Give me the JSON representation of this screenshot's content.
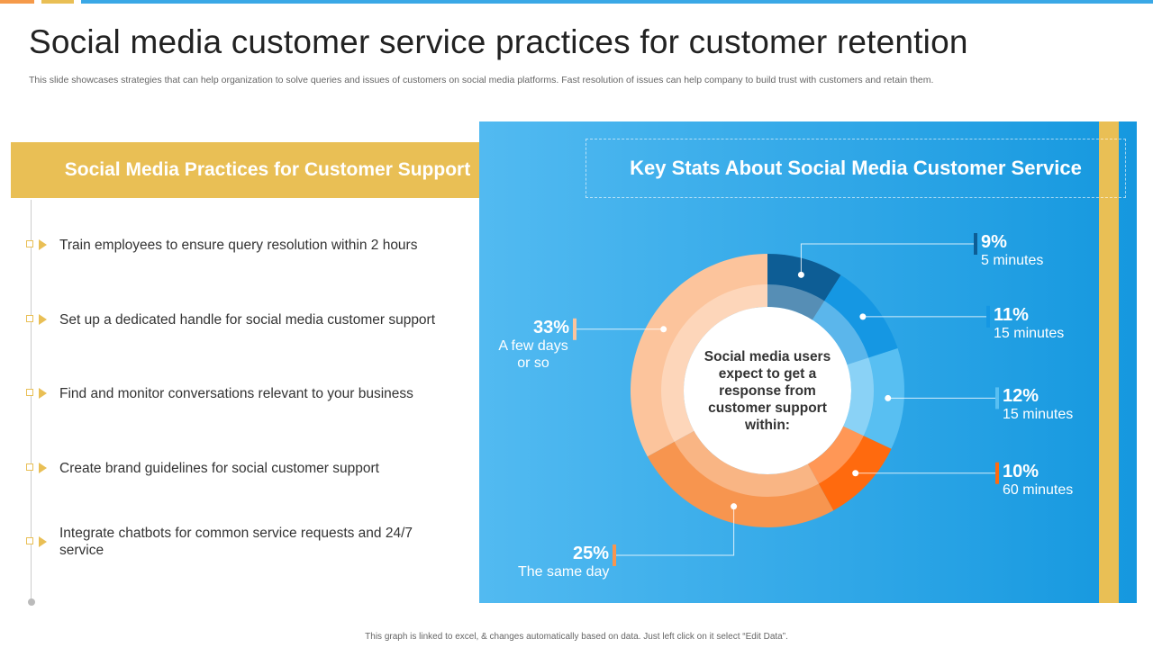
{
  "header": {
    "title": "Social media customer service practices for customer retention",
    "subtitle": "This slide showcases strategies that can help organization to solve queries and issues of customers on social media platforms. Fast resolution of issues can help company to build trust with customers and retain them."
  },
  "practices": {
    "heading": "Social Media Practices for Customer Support",
    "items": [
      "Train employees to ensure query resolution within 2 hours",
      "Set up a dedicated handle for social media customer support",
      "Find and monitor conversations relevant to your business",
      "Create brand guidelines for social customer support",
      "Integrate chatbots for common service requests and 24/7 service"
    ]
  },
  "stats_heading": "Key Stats About Social Media Customer Service",
  "chart_data": {
    "type": "donut",
    "center_text": "Social media users expect to get a response from customer support within:",
    "categories": [
      "5 minutes",
      "15 minutes",
      "15 minutes",
      "60 minutes",
      "The same day",
      "A few days or so"
    ],
    "values": [
      9,
      11,
      12,
      10,
      25,
      33
    ],
    "value_labels": [
      "9%",
      "11%",
      "12%",
      "10%",
      "25%",
      "33%"
    ],
    "colors": [
      "#0d5d95",
      "#1597e3",
      "#58bff2",
      "#ff6a0e",
      "#f7954f",
      "#fcc49c"
    ]
  },
  "footer": "This graph is linked to excel, & changes automatically based on data. Just left click on it select “Edit Data”."
}
